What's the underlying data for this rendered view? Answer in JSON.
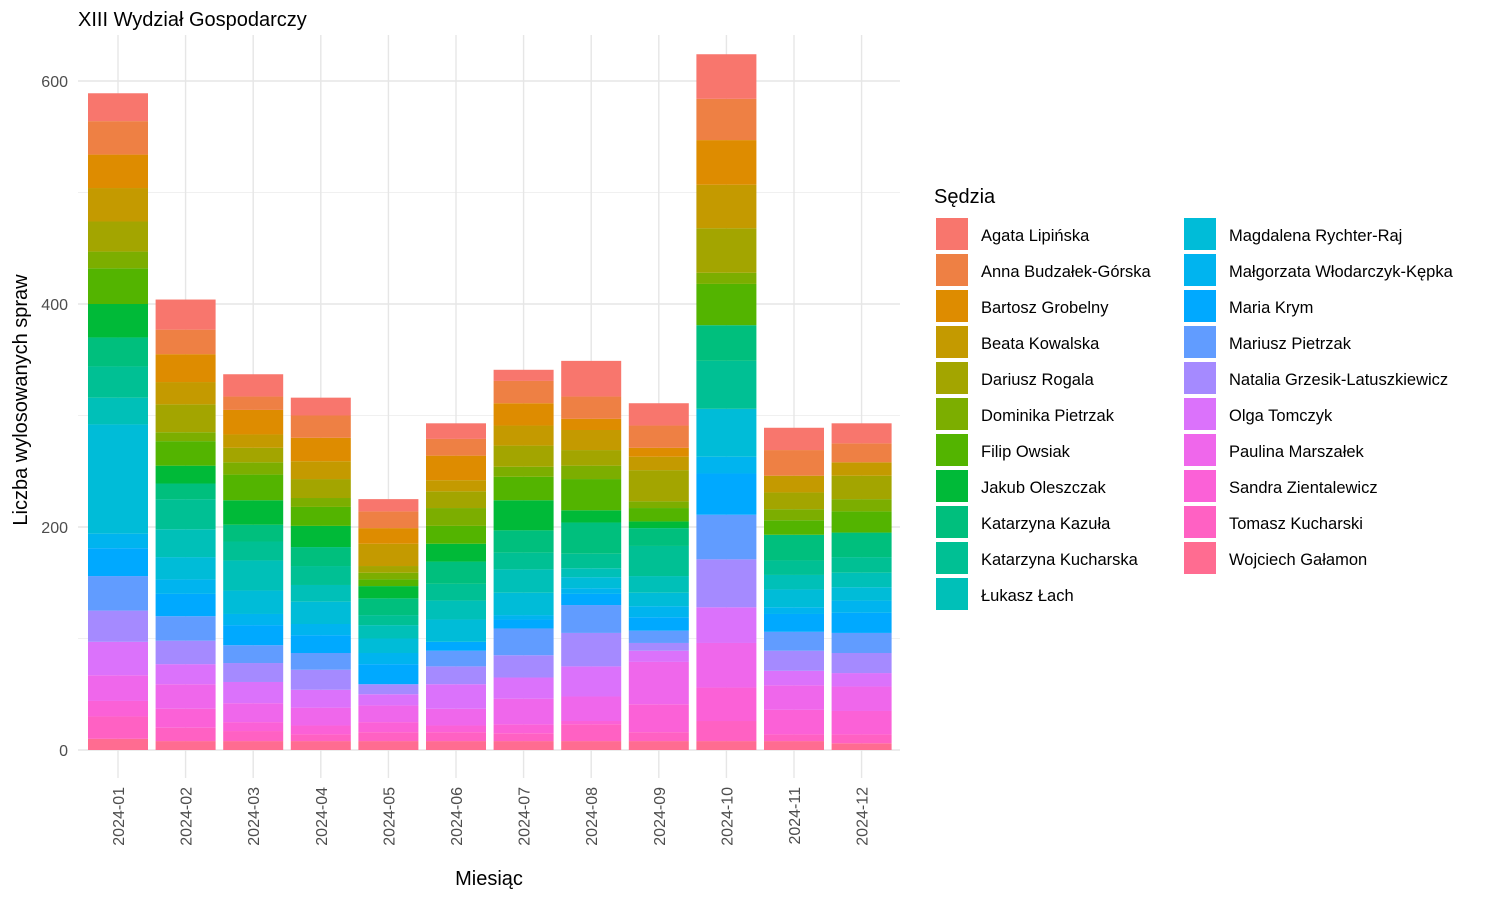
{
  "chart_data": {
    "type": "bar",
    "stacked": true,
    "title": "XIII Wydział Gospodarczy",
    "xlabel": "Miesiąc",
    "ylabel": "Liczba wylosowanych spraw",
    "ylim": [
      0,
      630
    ],
    "yticks": [
      0,
      200,
      400,
      600
    ],
    "grid": true,
    "legend_title": "Sędzia",
    "legend_position": "right",
    "categories": [
      "2024-01",
      "2024-02",
      "2024-03",
      "2024-04",
      "2024-05",
      "2024-06",
      "2024-07",
      "2024-08",
      "2024-09",
      "2024-10",
      "2024-11",
      "2024-12"
    ],
    "series": [
      {
        "name": "Wojciech Gałamon",
        "color": "#FF6C91",
        "values": [
          10,
          8,
          8,
          8,
          8,
          8,
          8,
          8,
          8,
          8,
          8,
          6
        ]
      },
      {
        "name": "Tomasz Kucharski",
        "color": "#FF61C3",
        "values": [
          20,
          12,
          9,
          6,
          8,
          8,
          7,
          15,
          8,
          18,
          6,
          8
        ]
      },
      {
        "name": "Sandra Zientalewicz",
        "color": "#FB61D7",
        "values": [
          14,
          17,
          8,
          8,
          9,
          6,
          8,
          3,
          25,
          30,
          22,
          21
        ]
      },
      {
        "name": "Paulina Marszałek",
        "color": "#EF67EB",
        "values": [
          23,
          22,
          17,
          16,
          15,
          15,
          23,
          22,
          38,
          40,
          22,
          22
        ]
      },
      {
        "name": "Olga Tomczyk",
        "color": "#DB72FB",
        "values": [
          30,
          18,
          19,
          16,
          10,
          22,
          19,
          27,
          10,
          32,
          13,
          12
        ]
      },
      {
        "name": "Natalia Grzesik-Latuszkiewicz",
        "color": "#A58AFF",
        "values": [
          28,
          21,
          17,
          18,
          9,
          16,
          20,
          30,
          7,
          43,
          18,
          18
        ]
      },
      {
        "name": "Mariusz Pietrzak",
        "color": "#619CFF",
        "values": [
          31,
          22,
          16,
          15,
          0,
          14,
          24,
          25,
          11,
          40,
          17,
          18
        ]
      },
      {
        "name": "Maria Krym",
        "color": "#00A9FF",
        "values": [
          25,
          20,
          18,
          16,
          18,
          8,
          8,
          10,
          12,
          37,
          16,
          18
        ]
      },
      {
        "name": "Małgorzata Włodarczyk-Kępka",
        "color": "#00B4EF",
        "values": [
          13,
          13,
          10,
          10,
          10,
          0,
          4,
          5,
          10,
          15,
          6,
          11
        ]
      },
      {
        "name": "Magdalena Rychter-Raj",
        "color": "#00BCD8",
        "values": [
          98,
          20,
          21,
          20,
          13,
          20,
          20,
          10,
          12,
          43,
          16,
          12
        ]
      },
      {
        "name": "Łukasz Łach",
        "color": "#00C0B8",
        "values": [
          24,
          25,
          27,
          15,
          12,
          17,
          21,
          8,
          15,
          0,
          13,
          13
        ]
      },
      {
        "name": "Katarzyna Kucharska",
        "color": "#00C094",
        "values": [
          28,
          27,
          17,
          17,
          9,
          15,
          15,
          13,
          27,
          43,
          13,
          14
        ]
      },
      {
        "name": "Katarzyna Kazuła",
        "color": "#00BF7D",
        "values": [
          26,
          14,
          15,
          17,
          15,
          20,
          20,
          28,
          16,
          32,
          23,
          22
        ]
      },
      {
        "name": "Jakub Oleszczak",
        "color": "#00BA38",
        "values": [
          30,
          16,
          22,
          19,
          11,
          16,
          27,
          11,
          6,
          0,
          0,
          0
        ]
      },
      {
        "name": "Filip Owsiak",
        "color": "#53B400",
        "values": [
          32,
          22,
          23,
          17,
          6,
          16,
          21,
          28,
          12,
          37,
          13,
          19
        ]
      },
      {
        "name": "Dominika Pietrzak",
        "color": "#7CAE00",
        "values": [
          15,
          8,
          11,
          8,
          6,
          16,
          9,
          12,
          6,
          10,
          10,
          11
        ]
      },
      {
        "name": "Dariusz Rogala",
        "color": "#A3A500",
        "values": [
          27,
          25,
          13,
          17,
          6,
          15,
          19,
          14,
          28,
          40,
          15,
          21
        ]
      },
      {
        "name": "Beata Kowalska",
        "color": "#C49A00",
        "values": [
          30,
          20,
          12,
          16,
          20,
          10,
          18,
          18,
          12,
          39,
          15,
          12
        ]
      },
      {
        "name": "Bartosz Grobelny",
        "color": "#DE8C00",
        "values": [
          30,
          25,
          22,
          21,
          14,
          22,
          20,
          10,
          8,
          40,
          0,
          0
        ]
      },
      {
        "name": "Anna Budzałek-Górska",
        "color": "#EE8044",
        "values": [
          30,
          22,
          12,
          20,
          15,
          15,
          20,
          20,
          20,
          37,
          23,
          17
        ]
      },
      {
        "name": "Agata Lipińska",
        "color": "#F8766D",
        "values": [
          25,
          27,
          20,
          16,
          11,
          14,
          10,
          32,
          20,
          40,
          20,
          18
        ]
      }
    ]
  }
}
